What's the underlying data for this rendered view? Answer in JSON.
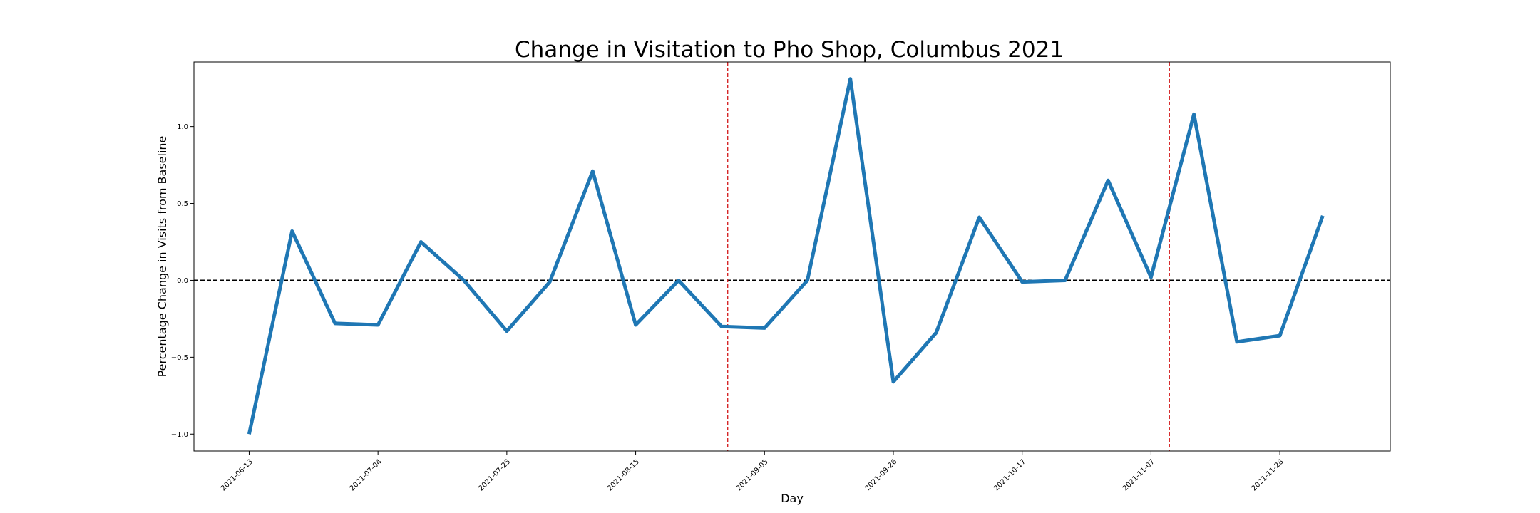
{
  "chart_data": {
    "type": "line",
    "title": "Change in Visitation to Pho Shop, Columbus 2021",
    "xlabel": "Day",
    "ylabel": "Percentage Change in Visits from Baseline",
    "x_ticks": [
      "2021-06-13",
      "2021-07-04",
      "2021-07-25",
      "2021-08-15",
      "2021-09-05",
      "2021-09-26",
      "2021-10-17",
      "2021-11-07",
      "2021-11-28"
    ],
    "y_ticks": [
      -1.0,
      -0.5,
      0.0,
      0.5,
      1.0
    ],
    "ylim": [
      -1.11,
      1.42
    ],
    "xlim": [
      "2021-06-04",
      "2021-12-16"
    ],
    "grid": false,
    "line_color": "#1f77b4",
    "baseline_color": "#000000",
    "event_line_color": "#d62728",
    "event_lines": [
      "2021-08-30",
      "2021-11-10"
    ],
    "x": [
      "2021-06-13",
      "2021-06-20",
      "2021-06-27",
      "2021-07-04",
      "2021-07-11",
      "2021-07-18",
      "2021-07-25",
      "2021-08-01",
      "2021-08-08",
      "2021-08-15",
      "2021-08-22",
      "2021-08-29",
      "2021-09-05",
      "2021-09-12",
      "2021-09-19",
      "2021-09-26",
      "2021-10-03",
      "2021-10-10",
      "2021-10-17",
      "2021-10-24",
      "2021-10-31",
      "2021-11-07",
      "2021-11-14",
      "2021-11-21",
      "2021-11-28",
      "2021-12-05"
    ],
    "series": [
      {
        "values": [
          -1.0,
          0.32,
          -0.28,
          -0.29,
          0.25,
          0.0,
          -0.33,
          -0.01,
          0.71,
          -0.29,
          0.0,
          -0.3,
          -0.31,
          0.0,
          1.31,
          -0.66,
          -0.34,
          0.41,
          -0.01,
          0.0,
          0.65,
          0.02,
          1.08,
          -0.4,
          -0.36,
          0.42
        ]
      }
    ]
  }
}
